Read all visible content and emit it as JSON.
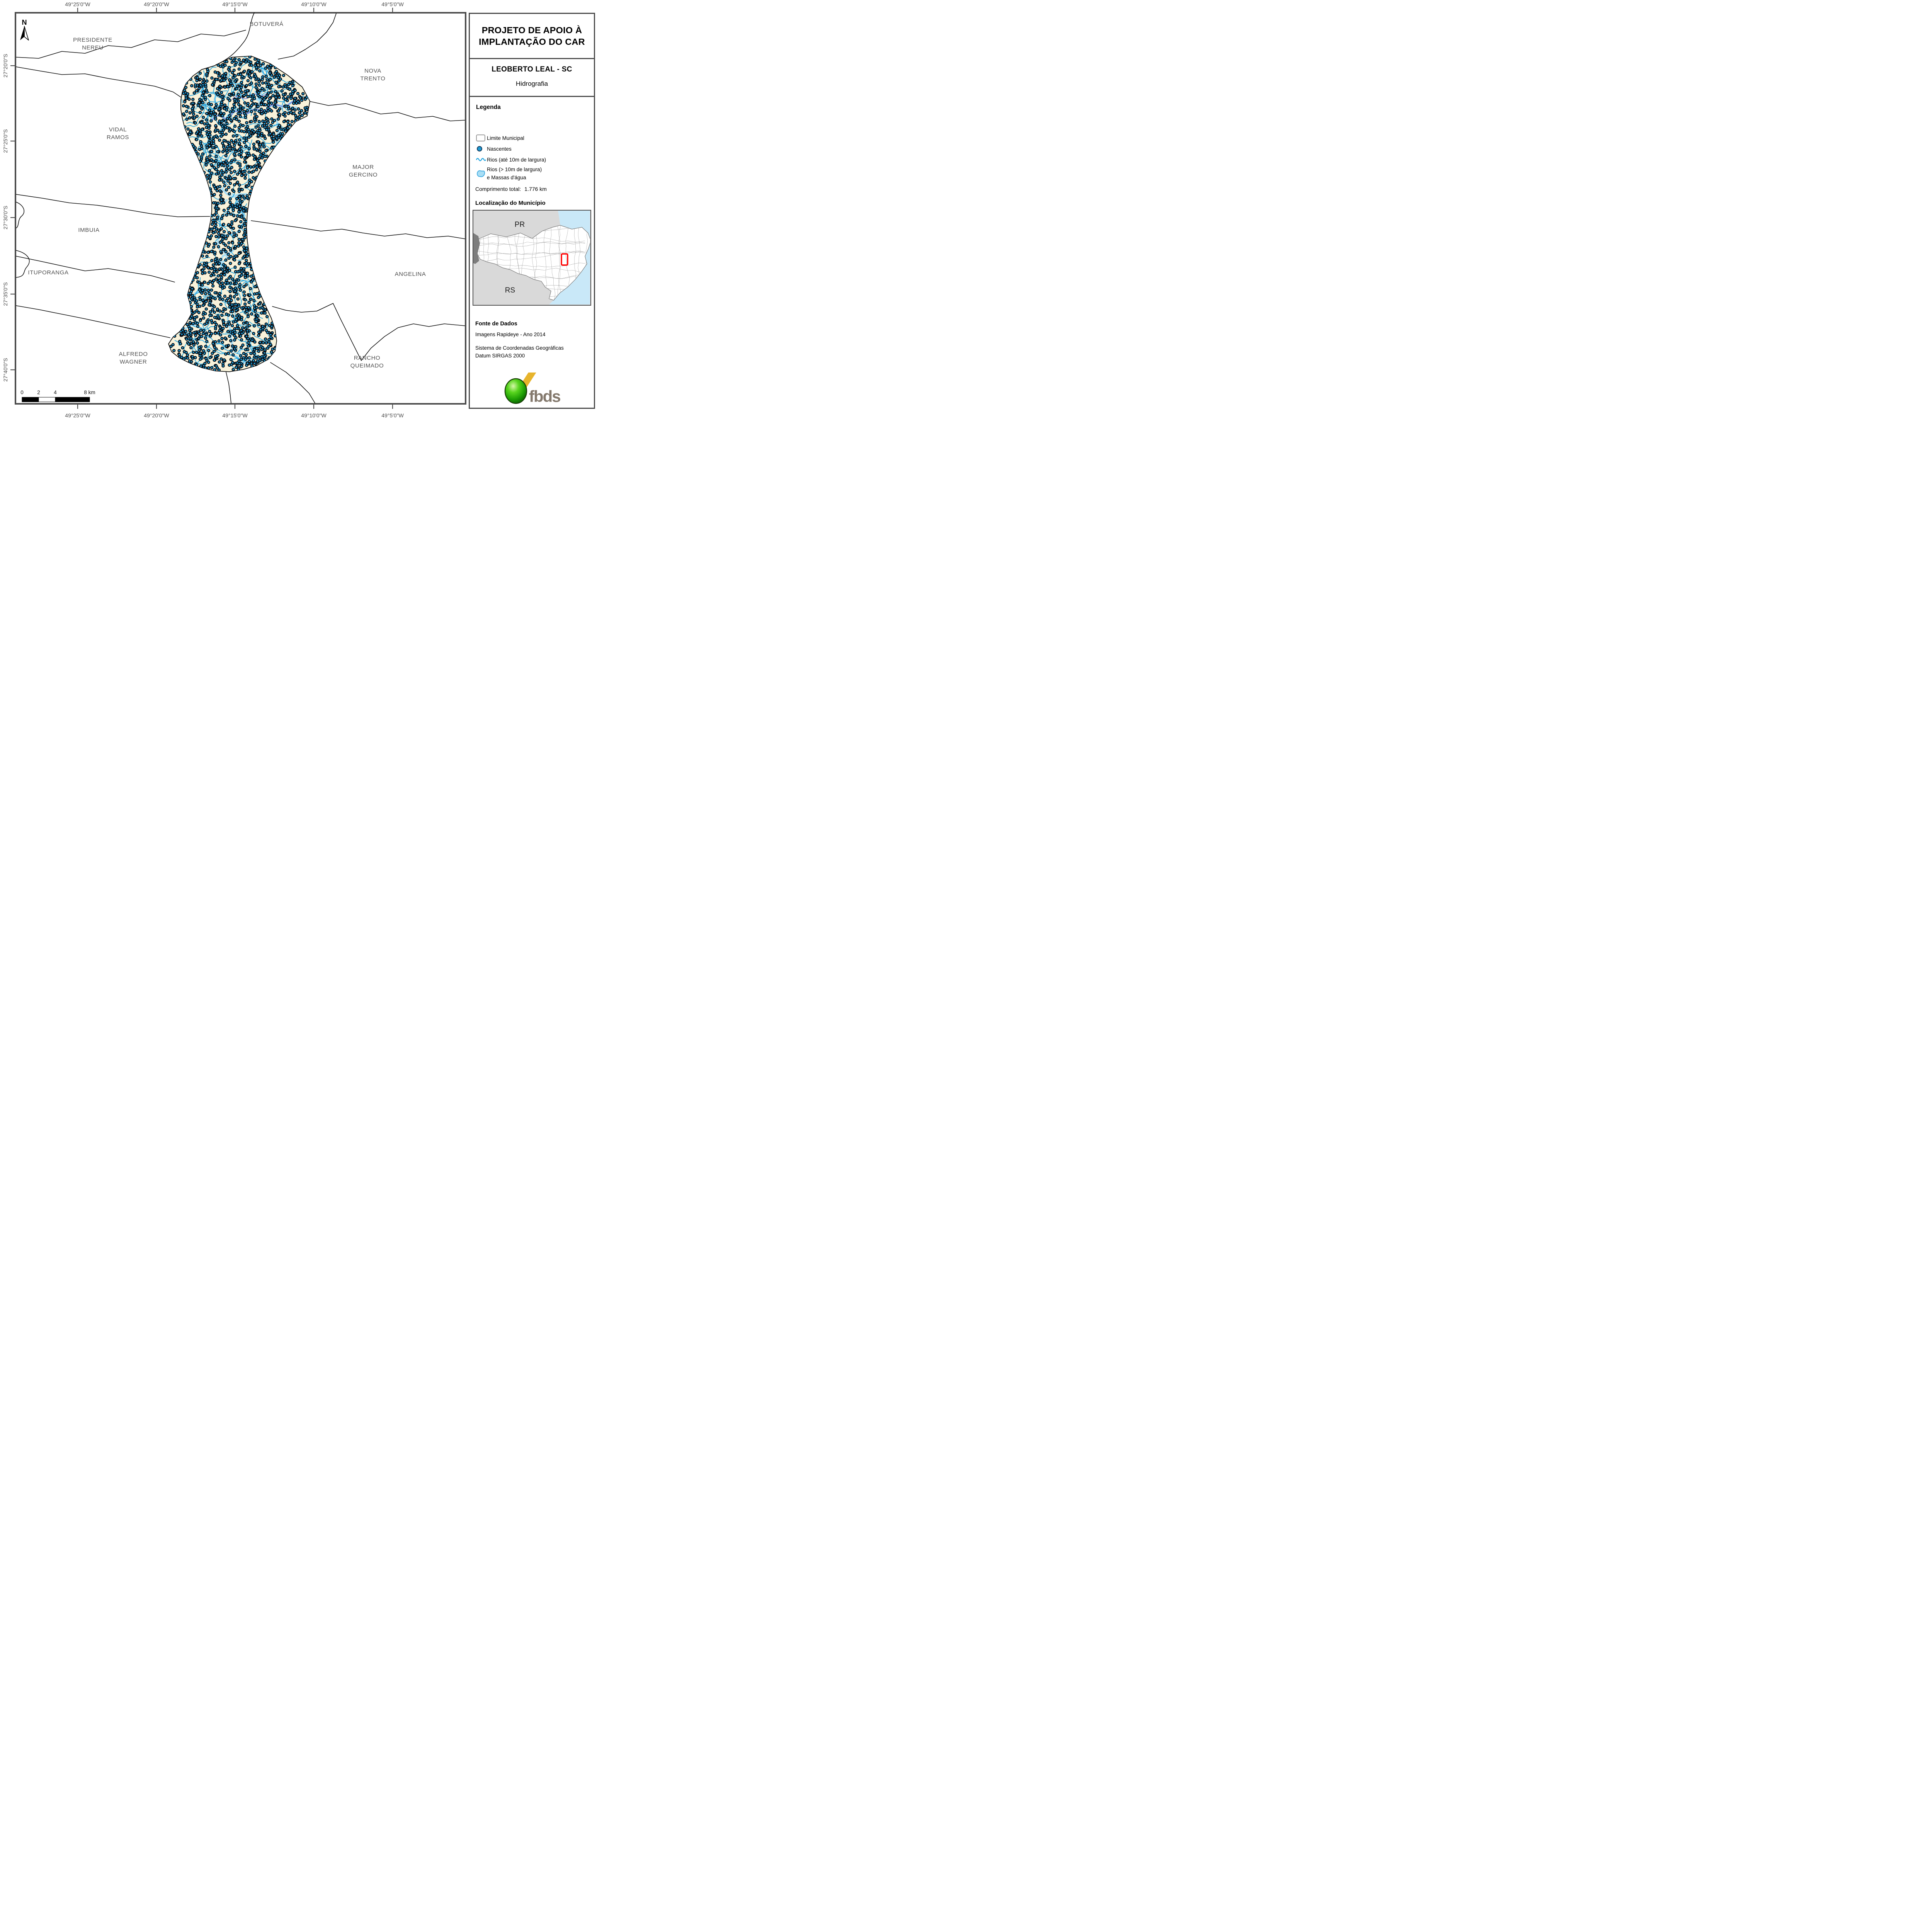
{
  "header": {
    "title_line1": "PROJETO DE APOIO À",
    "title_line2": "IMPLANTAÇÃO DO CAR",
    "municipality": "LEOBERTO LEAL - SC",
    "theme": "Hidrografia"
  },
  "legend": {
    "heading": "Legenda",
    "limite": "Limite Municipal",
    "nascentes": "Nascentes",
    "rios_ate": "Rios (até 10m de largura)",
    "rios_maior_l1": "Rios (> 10m de largura)",
    "rios_maior_l2": "e Massas d'água",
    "total_label": "Comprimento total:",
    "total_value": "1.776 km"
  },
  "locator": {
    "heading": "Localização do Município",
    "label_pr": "PR",
    "label_rs": "RS"
  },
  "source": {
    "heading": "Fonte de Dados",
    "line1": "Imagens Rapideye - Ano 2014",
    "line2": "Sistema de Coordenadas Geográficas",
    "line3": "Datum SIRGAS 2000"
  },
  "logo": {
    "text": "fbds"
  },
  "map": {
    "north_label": "N",
    "top_ticks": [
      "49°25'0\"W",
      "49°20'0\"W",
      "49°15'0\"W",
      "49°10'0\"W",
      "49°5'0\"W"
    ],
    "bottom_ticks": [
      "49°25'0\"W",
      "49°20'0\"W",
      "49°15'0\"W",
      "49°10'0\"W",
      "49°5'0\"W"
    ],
    "left_ticks": [
      "27°20'0\"S",
      "27°25'0\"S",
      "27°30'0\"S",
      "27°35'0\"S",
      "27°40'0\"S"
    ],
    "scale_labels": [
      "0",
      "2",
      "4",
      "8 km"
    ],
    "labels": [
      {
        "l1": "PRESIDENTE",
        "l2": "NEREU"
      },
      {
        "l1": "BOTUVERÁ",
        "l2": ""
      },
      {
        "l1": "NOVA",
        "l2": "TRENTO"
      },
      {
        "l1": "VIDAL",
        "l2": "RAMOS"
      },
      {
        "l1": "MAJOR",
        "l2": "GERCINO"
      },
      {
        "l1": "IMBUIA",
        "l2": ""
      },
      {
        "l1": "ITUPORANGA",
        "l2": ""
      },
      {
        "l1": "ANGELINA",
        "l2": ""
      },
      {
        "l1": "ALFREDO",
        "l2": "WAGNER"
      },
      {
        "l1": "RANCHO",
        "l2": "QUEIMADO"
      }
    ]
  },
  "colors": {
    "frame": "#4d4d4d",
    "label_gray": "#4f4f4f",
    "watershed_fill": "#f8f2da",
    "river_blue": "#29a6df",
    "river_wide_purple": "#6272d8",
    "water_light": "#a9def5",
    "nascente_fill": "#1f9ad2",
    "ocean": "#c9e8f8",
    "neighbor_gray": "#d9d9d9",
    "highlight_red": "#ff0000",
    "logo_green": "#2fae06",
    "logo_yellow": "#e7b42c",
    "logo_text": "#84796d"
  }
}
